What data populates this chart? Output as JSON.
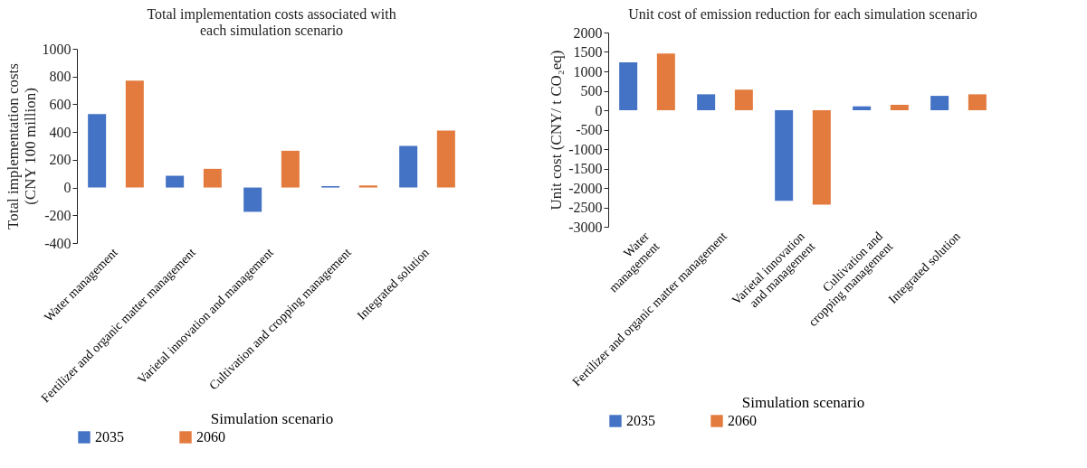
{
  "chart_data": [
    {
      "type": "bar",
      "title": "Total implementation costs associated with\neach simulation scenario",
      "xlabel": "Simulation scenario",
      "ylabel": "Total implementation costs\n(CNY 100 million)",
      "categories": [
        "Water management",
        "Fertilizer and organic matter management",
        "Varietal innovation and management",
        "Cultivation and cropping management",
        "Integrated solution"
      ],
      "series": [
        {
          "name": "2035",
          "color": "#4472c4",
          "values": [
            530,
            85,
            -175,
            10,
            300
          ]
        },
        {
          "name": "2060",
          "color": "#e37b3e",
          "values": [
            770,
            135,
            265,
            15,
            410
          ]
        }
      ],
      "ylim": [
        -400,
        1000
      ],
      "yticks": [
        -400,
        -200,
        0,
        200,
        400,
        600,
        800,
        1000
      ],
      "legend": "bottom"
    },
    {
      "type": "bar",
      "title": "Unit cost of emission reduction for each simulation scenario",
      "xlabel": "Simulation scenario",
      "ylabel": "Unit cost (CNY/ t CO₂eq)",
      "categories": [
        "Water\nmanagement",
        "Fertilizer and organic matter management",
        "Varietal innovation\nand management",
        "Cultivation and\ncropping management",
        "Integrated solution"
      ],
      "series": [
        {
          "name": "2035",
          "color": "#4472c4",
          "values": [
            1230,
            410,
            -2330,
            100,
            370
          ]
        },
        {
          "name": "2060",
          "color": "#e37b3e",
          "values": [
            1460,
            530,
            -2430,
            140,
            410
          ]
        }
      ],
      "ylim": [
        -3000,
        2000
      ],
      "yticks": [
        -3000,
        -2500,
        -2000,
        -1500,
        -1000,
        -500,
        0,
        500,
        1000,
        1500,
        2000
      ],
      "legend": "bottom"
    }
  ]
}
